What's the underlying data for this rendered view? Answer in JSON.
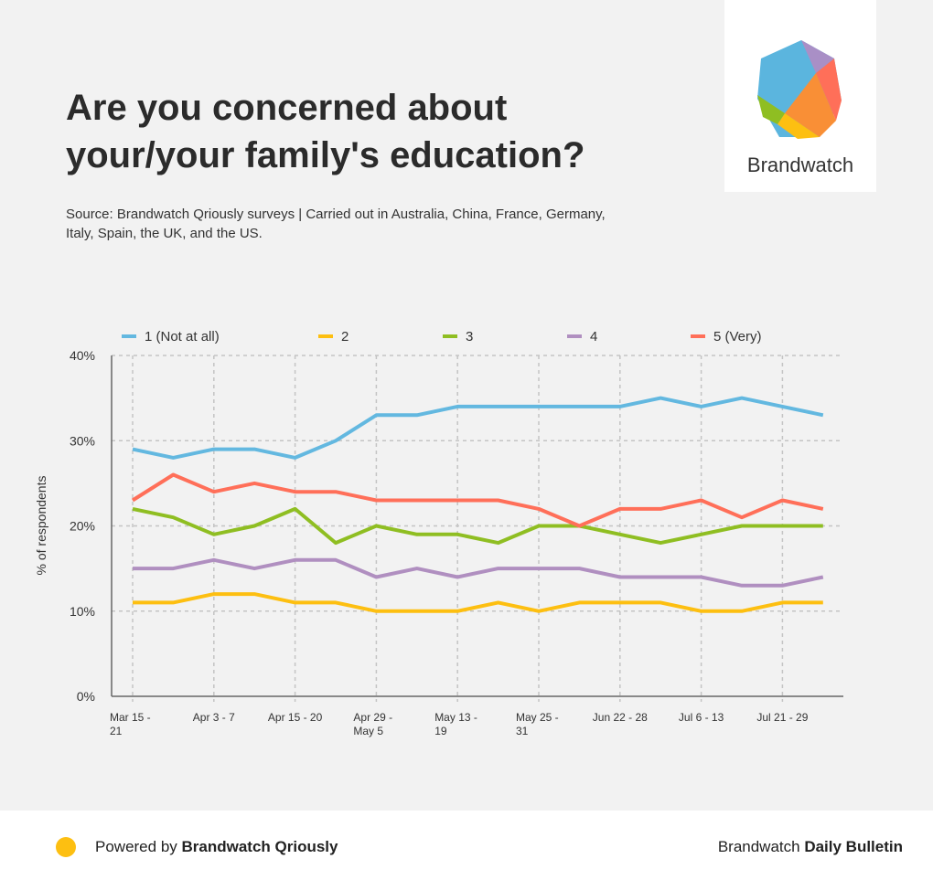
{
  "title": "Are you concerned about your/your family's education?",
  "source": "Source: Brandwatch Qriously surveys | Carried out in Australia, China, France, Germany, Italy, Spain, the UK, and the US.",
  "logo": {
    "text": "Brandwatch"
  },
  "footer": {
    "powered_prefix": "Powered by ",
    "powered_brand": "Brandwatch Qriously",
    "right_prefix": "Brandwatch ",
    "right_bold": "Daily Bulletin",
    "dot_color": "#fdbf11"
  },
  "chart_data": {
    "type": "line",
    "title": "Are you concerned about your/your family's education?",
    "ylabel": "% of respondents",
    "xlabel": "",
    "ylim": [
      0,
      40
    ],
    "yticks": [
      0,
      10,
      20,
      30,
      40
    ],
    "ytick_labels": [
      "0%",
      "10%",
      "20%",
      "30%",
      "40%"
    ],
    "grid": true,
    "legend_position": "top",
    "x_tick_labels": [
      "Mar 15 -\n21",
      "Apr 3 - 7",
      "Apr 15 - 20",
      "Apr 29 -\nMay 5",
      "May 13 -\n19",
      "May 25 -\n31",
      "Jun 22 - 28",
      "Jul 6 - 13",
      "Jul 21 - 29"
    ],
    "x_tick_every": 2,
    "n_points": 18,
    "series": [
      {
        "name": "1 (Not at all)",
        "color": "#63b8e0",
        "values": [
          29,
          28,
          29,
          29,
          28,
          30,
          33,
          33,
          34,
          34,
          34,
          34,
          34,
          35,
          34,
          35,
          34,
          33
        ]
      },
      {
        "name": "2",
        "color": "#fdbf11",
        "values": [
          11,
          11,
          12,
          12,
          11,
          11,
          10,
          10,
          10,
          11,
          10,
          11,
          11,
          11,
          10,
          10,
          11,
          11
        ]
      },
      {
        "name": "3",
        "color": "#8fbe22",
        "values": [
          22,
          21,
          19,
          20,
          22,
          18,
          20,
          19,
          19,
          18,
          20,
          20,
          19,
          18,
          19,
          20,
          20,
          20
        ]
      },
      {
        "name": "4",
        "color": "#b08fc0",
        "values": [
          15,
          15,
          16,
          15,
          16,
          16,
          14,
          15,
          14,
          15,
          15,
          15,
          14,
          14,
          14,
          13,
          13,
          14
        ]
      },
      {
        "name": "5 (Very)",
        "color": "#ff6f59",
        "values": [
          23,
          26,
          24,
          25,
          24,
          24,
          23,
          23,
          23,
          23,
          22,
          20,
          22,
          22,
          23,
          21,
          23,
          22
        ]
      }
    ]
  }
}
